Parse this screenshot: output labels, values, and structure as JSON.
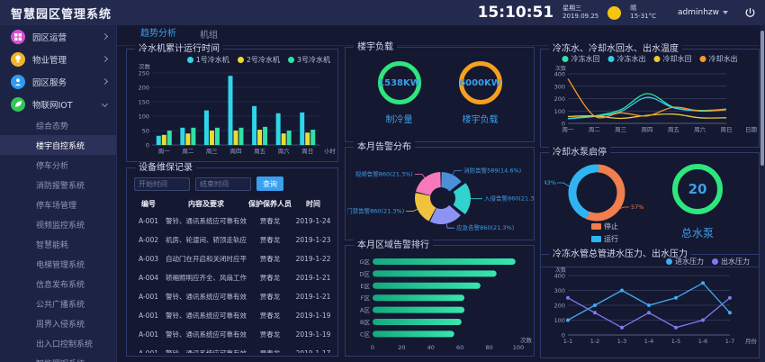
{
  "app": {
    "title": "智慧园区管理系统"
  },
  "header": {
    "clock": "15:10:51",
    "weekday": "星期三",
    "date": "2019.09.25",
    "weather": "晴",
    "temp_range": "15-31°C",
    "user": "adminhzw",
    "sun_color": "#f5c411"
  },
  "sidebar": {
    "items": [
      {
        "label": "园区运营",
        "icon": "park-operation-icon",
        "color": "#d94fd0",
        "expanded": false
      },
      {
        "label": "物业管理",
        "icon": "property-icon",
        "color": "#f0b429",
        "expanded": false
      },
      {
        "label": "园区服务",
        "icon": "park-service-icon",
        "color": "#2f9bf0",
        "expanded": false
      },
      {
        "label": "物联网IOT",
        "icon": "iot-icon",
        "color": "#35c558",
        "expanded": true
      }
    ],
    "sub_items": [
      "综合态势",
      "楼宇自控系统",
      "停车分析",
      "消防报警系统",
      "停车场管理",
      "视频监控系统",
      "智慧能耗",
      "电梯管理系统",
      "信息发布系统",
      "公共广播系统",
      "周界入侵系统",
      "出入口控制系统",
      "智能照明系统"
    ],
    "selected_index": 1
  },
  "tabs": [
    {
      "label": "趋势分析",
      "active": true
    },
    {
      "label": "机组",
      "active": false
    }
  ],
  "titles": {
    "chiller_runtime": "冷水机累计运行时间",
    "maintenance": "设备维保记录",
    "building_load": "楼宇负载",
    "alarm_distribution": "本月告警分布",
    "area_alarm_rank": "本月区域告警排行",
    "water_temp": "冷冻水、冷却水回水、出水温度",
    "pump_status": "冷却水泵启停",
    "water_pressure": "冷冻水管总管进水压力、出水压力"
  },
  "maintenance": {
    "start_placeholder": "开始时间",
    "end_placeholder": "结束时间",
    "search_label": "查询",
    "columns": [
      "编号",
      "内容及要求",
      "保护保养人员",
      "时间"
    ],
    "rows": [
      [
        "A-001",
        "警铃、通讯系统应可靠有效",
        "贾春龙",
        "2019-1-24"
      ],
      [
        "A-002",
        "机房、轮渡间、轿顶走轨应清理",
        "贾春龙",
        "2019-1-23"
      ],
      [
        "A-003",
        "自动门在开启和关闭时应平稳无震荡",
        "贾春龙",
        "2019-1-22"
      ],
      [
        "A-004",
        "轿厢照明应齐全、风扇工作应正常",
        "贾春龙",
        "2019-1-21"
      ],
      [
        "A-001",
        "警铃、通讯系统应可靠有效",
        "贾春龙",
        "2019-1-21"
      ],
      [
        "A-001",
        "警铃、通讯系统应可靠有效",
        "贾春龙",
        "2019-1-19"
      ],
      [
        "A-001",
        "警铃、通讯系统应可靠有效",
        "贾春龙",
        "2019-1-19"
      ],
      [
        "A-001",
        "警铃、通讯系统应可靠有效",
        "贾春龙",
        "2019-1-17"
      ]
    ]
  },
  "chart_data": [
    {
      "id": "chiller_runtime",
      "type": "bar",
      "title": "冷水机累计运行时间",
      "categories": [
        "周一",
        "周二",
        "周三",
        "周四",
        "周五",
        "周六",
        "周日"
      ],
      "series": [
        {
          "name": "1号冷水机",
          "color": "#2fd5e8",
          "values": [
            32,
            60,
            120,
            240,
            135,
            110,
            113
          ]
        },
        {
          "name": "2号冷水机",
          "color": "#eadd30",
          "values": [
            35,
            40,
            50,
            50,
            53,
            40,
            43
          ]
        },
        {
          "name": "3号冷水机",
          "color": "#31e0a8",
          "values": [
            50,
            60,
            60,
            60,
            63,
            50,
            53
          ]
        }
      ],
      "ylabel": "次数",
      "xlabel": "小时",
      "ylim": [
        0,
        250
      ],
      "ytick": 50,
      "legend_position": "top-right"
    },
    {
      "id": "building_load",
      "type": "gauge",
      "title": "楼宇负载",
      "gauges": [
        {
          "value": "1538KW",
          "label": "制冷量",
          "color": "#2ee67e"
        },
        {
          "value": "6000KW",
          "label": "楼宇负载",
          "color": "#f5a020"
        }
      ]
    },
    {
      "id": "alarm_distribution",
      "type": "pie",
      "title": "本月告警分布",
      "slices": [
        {
          "label": "消防告警589(14.6%)",
          "value": 14.6,
          "color": "#4a8fd8",
          "offset": false
        },
        {
          "label": "入侵告警860(21.3%)",
          "value": 21.3,
          "color": "#32d3ce",
          "offset": true
        },
        {
          "label": "应急告警860(21.3%)",
          "value": 21.3,
          "color": "#8b93f5",
          "offset": false
        },
        {
          "label": "门禁告警860(21.3%)",
          "value": 21.3,
          "color": "#f0c23d",
          "offset": false
        },
        {
          "label": "视频告警860(21.3%)",
          "value": 21.3,
          "color": "#f779b9",
          "offset": false
        }
      ],
      "donut": true,
      "label_color": "#3d9fe8"
    },
    {
      "id": "area_alarm_rank",
      "type": "bar",
      "title": "本月区域告警排行",
      "orientation": "horizontal",
      "categories": [
        "G区",
        "D区",
        "E区",
        "F区",
        "A区",
        "B区",
        "C区"
      ],
      "values": [
        98,
        85,
        74,
        63,
        63,
        61,
        56
      ],
      "xlabel": "次数",
      "xlim": [
        0,
        100
      ],
      "xtick": 20,
      "bar_colors": [
        "#14a97f",
        "#37e6ae"
      ]
    },
    {
      "id": "water_temp",
      "type": "line",
      "title": "冷冻水、冷却水回水、出水温度",
      "categories": [
        "周一",
        "周二",
        "周三",
        "周四",
        "周五",
        "周六",
        "周日"
      ],
      "series": [
        {
          "name": "冷冻水回",
          "color": "#2fe3a5",
          "values": [
            40,
            60,
            110,
            240,
            130,
            105,
            115
          ]
        },
        {
          "name": "冷冻水出",
          "color": "#35cde8",
          "values": [
            38,
            55,
            95,
            210,
            125,
            100,
            110
          ]
        },
        {
          "name": "冷却水回",
          "color": "#e8c93a",
          "values": [
            55,
            60,
            40,
            65,
            75,
            45,
            45
          ]
        },
        {
          "name": "冷却水出",
          "color": "#f59a28",
          "values": [
            360,
            60,
            85,
            60,
            130,
            100,
            110
          ]
        }
      ],
      "ylabel": "次数",
      "xlabel": "日期",
      "ylim": [
        0,
        400
      ],
      "ytick": 100,
      "smooth": true,
      "legend_position": "top-center"
    },
    {
      "id": "pump_status",
      "type": "pie",
      "title": "冷却水泵启停",
      "slices": [
        {
          "label": "停止",
          "value": 57,
          "pct_label": "57%",
          "color": "#f07f4d"
        },
        {
          "label": "运行",
          "value": 43,
          "pct_label": "43%",
          "color": "#2fb4f2"
        }
      ],
      "center_gauge": {
        "value": "20",
        "label": "总水泵",
        "ring_color": "#2ee67e"
      }
    },
    {
      "id": "water_pressure",
      "type": "line",
      "title": "冷冻水管总管进水压力、出水压力",
      "categories": [
        "1-1",
        "1-2",
        "1-3",
        "1-4",
        "1-5",
        "1-6",
        "1-7"
      ],
      "series": [
        {
          "name": "进水压力",
          "color": "#41aaf0",
          "values": [
            100,
            200,
            300,
            200,
            250,
            350,
            150
          ]
        },
        {
          "name": "出水压力",
          "color": "#7d7af2",
          "values": [
            250,
            150,
            50,
            150,
            50,
            100,
            250
          ]
        }
      ],
      "ylabel": "次数",
      "xlabel": "月份",
      "ylim": [
        0,
        400
      ],
      "ytick": 100,
      "markers": true,
      "legend_position": "top-right"
    }
  ]
}
